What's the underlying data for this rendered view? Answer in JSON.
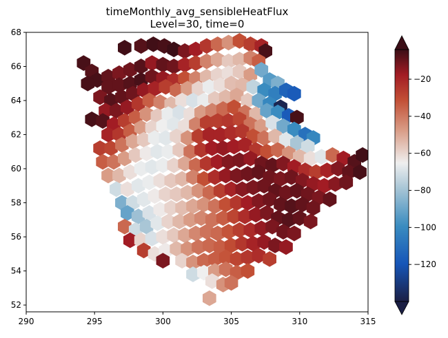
{
  "chart_data": {
    "type": "heatmap",
    "title_line1": "timeMonthly_avg_sensibleHeatFlux",
    "title_line2": "Level=30, time=0",
    "xlim": [
      290,
      315
    ],
    "ylim": [
      51.6,
      68
    ],
    "x_ticks": [
      290,
      295,
      300,
      305,
      310,
      315
    ],
    "y_ticks": [
      52,
      54,
      56,
      58,
      60,
      62,
      64,
      66,
      68
    ],
    "colorbar": {
      "colormap": "diverging dark-red / white / dark-blue",
      "range": [
        -140,
        -4
      ],
      "extend": "both",
      "ticks": [
        -20,
        -40,
        -60,
        -80,
        -100,
        -120
      ],
      "tick_labels": [
        "−20",
        "−40",
        "−60",
        "−80",
        "−100",
        "−120"
      ]
    },
    "cells": [
      [
        297.2,
        67.1,
        -5
      ],
      [
        298.4,
        67.2,
        -8
      ],
      [
        299.3,
        67.3,
        -5
      ],
      [
        300.1,
        67.2,
        -6
      ],
      [
        300.8,
        67.0,
        -4
      ],
      [
        301.6,
        66.9,
        -14
      ],
      [
        302.4,
        67.0,
        -20
      ],
      [
        303.2,
        67.2,
        -28
      ],
      [
        304.0,
        67.3,
        -40
      ],
      [
        304.8,
        67.4,
        -48
      ],
      [
        305.6,
        67.5,
        -35
      ],
      [
        306.4,
        67.3,
        -30
      ],
      [
        307.2,
        67.2,
        -22
      ],
      [
        307.5,
        66.9,
        -6
      ],
      [
        294.2,
        66.2,
        -6
      ],
      [
        294.8,
        65.7,
        -8
      ],
      [
        295.2,
        65.2,
        -6
      ],
      [
        294.5,
        65.0,
        -6
      ],
      [
        296.0,
        65.4,
        -10
      ],
      [
        296.8,
        65.6,
        -14
      ],
      [
        297.6,
        65.8,
        -12
      ],
      [
        298.4,
        66.0,
        -8
      ],
      [
        299.2,
        66.2,
        -18
      ],
      [
        300.0,
        66.1,
        -10
      ],
      [
        300.8,
        66.0,
        -12
      ],
      [
        301.6,
        66.1,
        -22
      ],
      [
        302.4,
        66.2,
        -30
      ],
      [
        303.2,
        66.3,
        -45
      ],
      [
        304.0,
        66.4,
        -52
      ],
      [
        304.8,
        66.3,
        -58
      ],
      [
        305.6,
        66.4,
        -55
      ],
      [
        306.4,
        66.5,
        -45
      ],
      [
        307.0,
        66.3,
        -38
      ],
      [
        296.0,
        64.8,
        -10
      ],
      [
        296.8,
        64.9,
        -10
      ],
      [
        297.6,
        65.0,
        -8
      ],
      [
        298.4,
        65.2,
        -6
      ],
      [
        299.2,
        65.4,
        -12
      ],
      [
        300.0,
        65.3,
        -18
      ],
      [
        300.8,
        65.2,
        -25
      ],
      [
        301.6,
        65.3,
        -35
      ],
      [
        302.4,
        65.3,
        -45
      ],
      [
        303.2,
        65.4,
        -55
      ],
      [
        304.0,
        65.5,
        -60
      ],
      [
        304.8,
        65.6,
        -62
      ],
      [
        305.6,
        65.7,
        -58
      ],
      [
        306.4,
        65.5,
        -50
      ],
      [
        307.2,
        65.8,
        -90
      ],
      [
        307.8,
        65.2,
        -95
      ],
      [
        308.4,
        65.0,
        -88
      ],
      [
        295.4,
        64.2,
        -14
      ],
      [
        296.2,
        64.0,
        -8
      ],
      [
        297.0,
        64.2,
        -10
      ],
      [
        297.8,
        64.4,
        -12
      ],
      [
        298.6,
        64.6,
        -18
      ],
      [
        299.4,
        64.7,
        -22
      ],
      [
        300.2,
        64.8,
        -30
      ],
      [
        301.0,
        64.6,
        -40
      ],
      [
        301.8,
        64.7,
        -50
      ],
      [
        302.6,
        64.7,
        -60
      ],
      [
        303.4,
        64.8,
        -66
      ],
      [
        304.2,
        64.9,
        -62
      ],
      [
        305.0,
        65.0,
        -56
      ],
      [
        305.8,
        64.9,
        -55
      ],
      [
        306.6,
        64.8,
        -75
      ],
      [
        307.4,
        64.6,
        -100
      ],
      [
        308.2,
        64.4,
        -105
      ],
      [
        309.0,
        64.6,
        -115
      ],
      [
        309.6,
        64.4,
        -118
      ],
      [
        295.8,
        63.4,
        -18
      ],
      [
        296.6,
        63.4,
        -14
      ],
      [
        297.4,
        63.6,
        -18
      ],
      [
        298.2,
        63.8,
        -28
      ],
      [
        299.0,
        64.0,
        -38
      ],
      [
        299.8,
        63.9,
        -45
      ],
      [
        300.6,
        63.8,
        -55
      ],
      [
        301.4,
        64.0,
        -62
      ],
      [
        302.2,
        64.0,
        -70
      ],
      [
        303.0,
        64.0,
        -66
      ],
      [
        303.8,
        64.1,
        -58
      ],
      [
        304.6,
        64.2,
        -55
      ],
      [
        305.4,
        64.3,
        -52
      ],
      [
        306.2,
        64.0,
        -58
      ],
      [
        307.0,
        64.0,
        -90
      ],
      [
        307.8,
        63.8,
        -102
      ],
      [
        308.6,
        63.6,
        -138
      ],
      [
        294.8,
        62.9,
        -6
      ],
      [
        295.6,
        62.8,
        -8
      ],
      [
        296.4,
        62.6,
        -20
      ],
      [
        297.2,
        62.8,
        -30
      ],
      [
        298.0,
        63.0,
        -38
      ],
      [
        298.8,
        63.2,
        -48
      ],
      [
        299.6,
        63.1,
        -58
      ],
      [
        300.4,
        63.2,
        -66
      ],
      [
        301.2,
        63.3,
        -70
      ],
      [
        302.0,
        63.2,
        -62
      ],
      [
        302.8,
        63.3,
        -50
      ],
      [
        303.6,
        63.4,
        -45
      ],
      [
        304.4,
        63.5,
        -40
      ],
      [
        305.2,
        63.6,
        -35
      ],
      [
        306.0,
        63.3,
        -42
      ],
      [
        306.8,
        63.2,
        -55
      ],
      [
        307.6,
        63.4,
        -92
      ],
      [
        308.4,
        63.3,
        -100
      ],
      [
        309.2,
        63.1,
        -118
      ],
      [
        309.8,
        63.0,
        -6
      ],
      [
        296.0,
        62.0,
        -22
      ],
      [
        296.8,
        62.0,
        -28
      ],
      [
        297.6,
        62.2,
        -38
      ],
      [
        298.4,
        62.4,
        -50
      ],
      [
        299.2,
        62.4,
        -60
      ],
      [
        300.0,
        62.5,
        -65
      ],
      [
        300.8,
        62.6,
        -68
      ],
      [
        301.6,
        62.5,
        -62
      ],
      [
        302.4,
        62.6,
        -45
      ],
      [
        303.2,
        62.7,
        -30
      ],
      [
        304.0,
        62.8,
        -30
      ],
      [
        304.8,
        62.8,
        -28
      ],
      [
        305.6,
        62.9,
        -32
      ],
      [
        306.4,
        62.6,
        -42
      ],
      [
        307.2,
        62.5,
        -50
      ],
      [
        308.0,
        62.7,
        -70
      ],
      [
        308.8,
        62.5,
        -90
      ],
      [
        309.6,
        62.3,
        -100
      ],
      [
        310.4,
        62.0,
        -110
      ],
      [
        311.0,
        61.8,
        -102
      ],
      [
        295.4,
        61.2,
        -30
      ],
      [
        296.2,
        61.2,
        -32
      ],
      [
        297.0,
        61.4,
        -42
      ],
      [
        297.8,
        61.6,
        -52
      ],
      [
        298.6,
        61.7,
        -58
      ],
      [
        299.4,
        61.8,
        -66
      ],
      [
        300.2,
        61.8,
        -68
      ],
      [
        301.0,
        61.9,
        -60
      ],
      [
        301.8,
        61.8,
        -48
      ],
      [
        302.6,
        61.9,
        -30
      ],
      [
        303.4,
        62.0,
        -22
      ],
      [
        304.2,
        62.0,
        -22
      ],
      [
        305.0,
        62.1,
        -25
      ],
      [
        305.8,
        62.2,
        -28
      ],
      [
        306.6,
        61.9,
        -35
      ],
      [
        307.4,
        61.8,
        -42
      ],
      [
        308.2,
        61.9,
        -55
      ],
      [
        309.0,
        61.7,
        -68
      ],
      [
        309.8,
        61.5,
        -80
      ],
      [
        310.6,
        61.3,
        -72
      ],
      [
        295.6,
        60.4,
        -38
      ],
      [
        296.4,
        60.4,
        -42
      ],
      [
        297.2,
        60.6,
        -50
      ],
      [
        298.0,
        60.8,
        -58
      ],
      [
        298.8,
        60.9,
        -64
      ],
      [
        299.6,
        61.0,
        -68
      ],
      [
        300.4,
        61.0,
        -66
      ],
      [
        301.2,
        61.1,
        -58
      ],
      [
        302.0,
        61.0,
        -42
      ],
      [
        302.8,
        61.1,
        -28
      ],
      [
        303.6,
        61.2,
        -20
      ],
      [
        304.4,
        61.2,
        -18
      ],
      [
        305.2,
        61.3,
        -20
      ],
      [
        306.0,
        61.4,
        -22
      ],
      [
        306.8,
        61.1,
        -28
      ],
      [
        307.6,
        61.0,
        -35
      ],
      [
        308.4,
        61.1,
        -40
      ],
      [
        309.2,
        60.9,
        -48
      ],
      [
        310.0,
        60.7,
        -55
      ],
      [
        310.8,
        60.6,
        -62
      ],
      [
        311.6,
        60.7,
        -68
      ],
      [
        312.4,
        60.8,
        -40
      ],
      [
        313.2,
        60.6,
        -20
      ],
      [
        314.0,
        60.4,
        -8
      ],
      [
        314.6,
        60.8,
        -5
      ],
      [
        296.0,
        59.6,
        -50
      ],
      [
        296.8,
        59.6,
        -55
      ],
      [
        297.6,
        59.8,
        -62
      ],
      [
        298.4,
        60.0,
        -66
      ],
      [
        299.2,
        60.1,
        -68
      ],
      [
        300.0,
        60.2,
        -66
      ],
      [
        300.8,
        60.2,
        -60
      ],
      [
        301.6,
        60.3,
        -52
      ],
      [
        302.4,
        60.2,
        -40
      ],
      [
        303.2,
        60.3,
        -28
      ],
      [
        304.0,
        60.4,
        -20
      ],
      [
        304.8,
        60.4,
        -15
      ],
      [
        305.6,
        60.5,
        -14
      ],
      [
        306.4,
        60.6,
        -18
      ],
      [
        307.2,
        60.3,
        -12
      ],
      [
        308.0,
        60.2,
        -10
      ],
      [
        308.8,
        60.3,
        -15
      ],
      [
        309.6,
        60.1,
        -20
      ],
      [
        310.4,
        59.9,
        -25
      ],
      [
        311.2,
        59.8,
        -30
      ],
      [
        312.0,
        59.9,
        -22
      ],
      [
        312.8,
        60.0,
        -15
      ],
      [
        313.6,
        59.8,
        -10
      ],
      [
        314.4,
        59.8,
        -6
      ],
      [
        296.6,
        58.8,
        -72
      ],
      [
        297.4,
        58.8,
        -62
      ],
      [
        298.2,
        59.0,
        -68
      ],
      [
        299.0,
        59.2,
        -66
      ],
      [
        299.8,
        59.3,
        -62
      ],
      [
        300.6,
        59.3,
        -58
      ],
      [
        301.4,
        59.4,
        -55
      ],
      [
        302.2,
        59.5,
        -45
      ],
      [
        303.0,
        59.4,
        -35
      ],
      [
        303.8,
        59.5,
        -25
      ],
      [
        304.6,
        59.6,
        -18
      ],
      [
        305.4,
        59.6,
        -14
      ],
      [
        306.2,
        59.7,
        -12
      ],
      [
        307.0,
        59.8,
        -10
      ],
      [
        307.8,
        59.5,
        -12
      ],
      [
        308.6,
        59.4,
        -14
      ],
      [
        309.4,
        59.5,
        -12
      ],
      [
        310.2,
        59.3,
        -15
      ],
      [
        311.0,
        59.1,
        -18
      ],
      [
        311.8,
        59.0,
        -20
      ],
      [
        312.6,
        59.1,
        -16
      ],
      [
        313.4,
        59.2,
        -12
      ],
      [
        297.0,
        58.0,
        -88
      ],
      [
        297.8,
        58.0,
        -72
      ],
      [
        298.6,
        58.2,
        -68
      ],
      [
        299.4,
        58.4,
        -64
      ],
      [
        300.2,
        58.5,
        -60
      ],
      [
        301.0,
        58.5,
        -58
      ],
      [
        301.8,
        58.6,
        -55
      ],
      [
        302.6,
        58.7,
        -48
      ],
      [
        303.4,
        58.6,
        -40
      ],
      [
        304.2,
        58.7,
        -30
      ],
      [
        305.0,
        58.8,
        -22
      ],
      [
        305.8,
        58.8,
        -16
      ],
      [
        306.6,
        58.9,
        -14
      ],
      [
        307.4,
        59.0,
        -12
      ],
      [
        308.2,
        58.7,
        -10
      ],
      [
        309.0,
        58.6,
        -12
      ],
      [
        309.8,
        58.7,
        -10
      ],
      [
        310.6,
        58.5,
        -12
      ],
      [
        311.4,
        58.3,
        -14
      ],
      [
        312.2,
        58.2,
        -10
      ],
      [
        297.4,
        57.4,
        -92
      ],
      [
        298.2,
        57.2,
        -82
      ],
      [
        299.0,
        57.4,
        -70
      ],
      [
        299.8,
        57.6,
        -64
      ],
      [
        300.6,
        57.7,
        -60
      ],
      [
        301.4,
        57.7,
        -56
      ],
      [
        302.2,
        57.8,
        -52
      ],
      [
        303.0,
        57.9,
        -48
      ],
      [
        303.8,
        57.8,
        -42
      ],
      [
        304.6,
        57.9,
        -35
      ],
      [
        305.4,
        58.0,
        -28
      ],
      [
        306.2,
        58.0,
        -20
      ],
      [
        307.0,
        58.1,
        -15
      ],
      [
        307.8,
        58.2,
        -12
      ],
      [
        308.6,
        57.9,
        -10
      ],
      [
        309.4,
        57.8,
        -8
      ],
      [
        310.2,
        57.9,
        -10
      ],
      [
        311.0,
        57.7,
        -12
      ],
      [
        297.2,
        56.6,
        -40
      ],
      [
        298.0,
        56.4,
        -72
      ],
      [
        298.8,
        56.6,
        -80
      ],
      [
        299.6,
        56.8,
        -68
      ],
      [
        300.4,
        56.9,
        -60
      ],
      [
        301.2,
        56.9,
        -55
      ],
      [
        302.0,
        57.0,
        -50
      ],
      [
        302.8,
        57.1,
        -46
      ],
      [
        303.6,
        57.0,
        -42
      ],
      [
        304.4,
        57.1,
        -38
      ],
      [
        305.2,
        57.2,
        -32
      ],
      [
        306.0,
        57.2,
        -25
      ],
      [
        306.8,
        57.3,
        -18
      ],
      [
        307.6,
        57.4,
        -14
      ],
      [
        308.4,
        57.1,
        -10
      ],
      [
        309.2,
        57.0,
        -8
      ],
      [
        310.0,
        57.1,
        -10
      ],
      [
        310.8,
        56.9,
        -14
      ],
      [
        297.6,
        55.8,
        -20
      ],
      [
        298.4,
        55.8,
        -60
      ],
      [
        299.2,
        55.9,
        -70
      ],
      [
        300.0,
        56.0,
        -62
      ],
      [
        300.8,
        56.1,
        -58
      ],
      [
        301.6,
        56.1,
        -52
      ],
      [
        302.4,
        56.2,
        -46
      ],
      [
        303.2,
        56.3,
        -42
      ],
      [
        304.0,
        56.2,
        -40
      ],
      [
        304.8,
        56.3,
        -36
      ],
      [
        305.6,
        56.4,
        -30
      ],
      [
        306.4,
        56.4,
        -24
      ],
      [
        307.2,
        56.5,
        -18
      ],
      [
        308.0,
        56.6,
        -14
      ],
      [
        308.8,
        56.3,
        -12
      ],
      [
        309.6,
        56.2,
        -14
      ],
      [
        298.6,
        55.2,
        -30
      ],
      [
        299.4,
        55.0,
        -62
      ],
      [
        300.2,
        55.2,
        -64
      ],
      [
        301.0,
        55.3,
        -55
      ],
      [
        301.8,
        55.3,
        -48
      ],
      [
        302.6,
        55.4,
        -42
      ],
      [
        303.4,
        55.5,
        -40
      ],
      [
        304.2,
        55.4,
        -38
      ],
      [
        305.0,
        55.5,
        -34
      ],
      [
        305.8,
        55.6,
        -28
      ],
      [
        306.6,
        55.6,
        -22
      ],
      [
        307.4,
        55.7,
        -18
      ],
      [
        308.2,
        55.5,
        -14
      ],
      [
        309.0,
        55.4,
        -18
      ],
      [
        301.4,
        54.6,
        -60
      ],
      [
        302.2,
        54.5,
        -48
      ],
      [
        303.0,
        54.6,
        -40
      ],
      [
        303.8,
        54.7,
        -38
      ],
      [
        304.6,
        54.8,
        -36
      ],
      [
        305.4,
        54.7,
        -32
      ],
      [
        306.2,
        54.8,
        -28
      ],
      [
        307.0,
        54.9,
        -25
      ],
      [
        307.8,
        54.7,
        -30
      ],
      [
        300.0,
        54.6,
        -14
      ],
      [
        302.2,
        53.8,
        -72
      ],
      [
        303.0,
        53.9,
        -65
      ],
      [
        303.8,
        54.0,
        -50
      ],
      [
        304.6,
        54.1,
        -42
      ],
      [
        305.4,
        53.9,
        -38
      ],
      [
        306.2,
        54.0,
        -35
      ],
      [
        303.6,
        53.4,
        -62
      ],
      [
        304.4,
        53.2,
        -48
      ],
      [
        305.0,
        53.3,
        -42
      ],
      [
        303.4,
        52.4,
        -52
      ]
    ]
  }
}
